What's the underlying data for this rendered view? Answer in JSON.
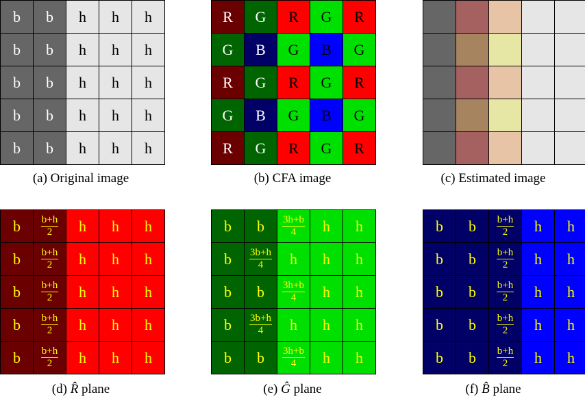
{
  "colors": {
    "orig_b": "#666666",
    "orig_h": "#e6e6e6",
    "R": "#ff0000",
    "R_dark": "#6b0000",
    "G": "#00e000",
    "G_dark": "#006400",
    "B": "#0000ff",
    "B_dark": "#000066",
    "est_dark": "#666666",
    "est_red": "#a56060",
    "est_peach": "#e6c4a5",
    "est_khaki": "#a5845f",
    "est_yellow": "#e6e6a5",
    "est_light": "#e6e6e6",
    "yellow_text": "#ffff00"
  },
  "panels": [
    {
      "id": "a",
      "caption": "(a) Original image",
      "rows": [
        [
          {
            "t": "b",
            "bg": "orig_b",
            "fg": "#ffffff"
          },
          {
            "t": "b",
            "bg": "orig_b",
            "fg": "#ffffff"
          },
          {
            "t": "h",
            "bg": "orig_h",
            "fg": "#000000"
          },
          {
            "t": "h",
            "bg": "orig_h",
            "fg": "#000000"
          },
          {
            "t": "h",
            "bg": "orig_h",
            "fg": "#000000"
          }
        ],
        [
          {
            "t": "b",
            "bg": "orig_b",
            "fg": "#ffffff"
          },
          {
            "t": "b",
            "bg": "orig_b",
            "fg": "#ffffff"
          },
          {
            "t": "h",
            "bg": "orig_h",
            "fg": "#000000"
          },
          {
            "t": "h",
            "bg": "orig_h",
            "fg": "#000000"
          },
          {
            "t": "h",
            "bg": "orig_h",
            "fg": "#000000"
          }
        ],
        [
          {
            "t": "b",
            "bg": "orig_b",
            "fg": "#ffffff"
          },
          {
            "t": "b",
            "bg": "orig_b",
            "fg": "#ffffff"
          },
          {
            "t": "h",
            "bg": "orig_h",
            "fg": "#000000"
          },
          {
            "t": "h",
            "bg": "orig_h",
            "fg": "#000000"
          },
          {
            "t": "h",
            "bg": "orig_h",
            "fg": "#000000"
          }
        ],
        [
          {
            "t": "b",
            "bg": "orig_b",
            "fg": "#ffffff"
          },
          {
            "t": "b",
            "bg": "orig_b",
            "fg": "#ffffff"
          },
          {
            "t": "h",
            "bg": "orig_h",
            "fg": "#000000"
          },
          {
            "t": "h",
            "bg": "orig_h",
            "fg": "#000000"
          },
          {
            "t": "h",
            "bg": "orig_h",
            "fg": "#000000"
          }
        ],
        [
          {
            "t": "b",
            "bg": "orig_b",
            "fg": "#ffffff"
          },
          {
            "t": "b",
            "bg": "orig_b",
            "fg": "#ffffff"
          },
          {
            "t": "h",
            "bg": "orig_h",
            "fg": "#000000"
          },
          {
            "t": "h",
            "bg": "orig_h",
            "fg": "#000000"
          },
          {
            "t": "h",
            "bg": "orig_h",
            "fg": "#000000"
          }
        ]
      ]
    },
    {
      "id": "b",
      "caption": "(b) CFA image",
      "rows": [
        [
          {
            "t": "R",
            "bg": "R_dark",
            "fg": "#ffffff"
          },
          {
            "t": "G",
            "bg": "G_dark",
            "fg": "#ffffff"
          },
          {
            "t": "R",
            "bg": "R",
            "fg": "#000000"
          },
          {
            "t": "G",
            "bg": "G",
            "fg": "#000000"
          },
          {
            "t": "R",
            "bg": "R",
            "fg": "#000000"
          }
        ],
        [
          {
            "t": "G",
            "bg": "G_dark",
            "fg": "#ffffff"
          },
          {
            "t": "B",
            "bg": "B_dark",
            "fg": "#ffffff"
          },
          {
            "t": "G",
            "bg": "G",
            "fg": "#000000"
          },
          {
            "t": "B",
            "bg": "B",
            "fg": "#000000"
          },
          {
            "t": "G",
            "bg": "G",
            "fg": "#000000"
          }
        ],
        [
          {
            "t": "R",
            "bg": "R_dark",
            "fg": "#ffffff"
          },
          {
            "t": "G",
            "bg": "G_dark",
            "fg": "#ffffff"
          },
          {
            "t": "R",
            "bg": "R",
            "fg": "#000000"
          },
          {
            "t": "G",
            "bg": "G",
            "fg": "#000000"
          },
          {
            "t": "R",
            "bg": "R",
            "fg": "#000000"
          }
        ],
        [
          {
            "t": "G",
            "bg": "G_dark",
            "fg": "#ffffff"
          },
          {
            "t": "B",
            "bg": "B_dark",
            "fg": "#ffffff"
          },
          {
            "t": "G",
            "bg": "G",
            "fg": "#000000"
          },
          {
            "t": "B",
            "bg": "B",
            "fg": "#000000"
          },
          {
            "t": "G",
            "bg": "G",
            "fg": "#000000"
          }
        ],
        [
          {
            "t": "R",
            "bg": "R_dark",
            "fg": "#ffffff"
          },
          {
            "t": "G",
            "bg": "G_dark",
            "fg": "#ffffff"
          },
          {
            "t": "R",
            "bg": "R",
            "fg": "#000000"
          },
          {
            "t": "G",
            "bg": "G",
            "fg": "#000000"
          },
          {
            "t": "R",
            "bg": "R",
            "fg": "#000000"
          }
        ]
      ]
    },
    {
      "id": "c",
      "caption": "(c) Estimated image",
      "rows": [
        [
          {
            "t": "",
            "bg": "est_dark"
          },
          {
            "t": "",
            "bg": "est_red"
          },
          {
            "t": "",
            "bg": "est_peach"
          },
          {
            "t": "",
            "bg": "est_light"
          },
          {
            "t": "",
            "bg": "est_light"
          }
        ],
        [
          {
            "t": "",
            "bg": "est_dark"
          },
          {
            "t": "",
            "bg": "est_khaki"
          },
          {
            "t": "",
            "bg": "est_yellow"
          },
          {
            "t": "",
            "bg": "est_light"
          },
          {
            "t": "",
            "bg": "est_light"
          }
        ],
        [
          {
            "t": "",
            "bg": "est_dark"
          },
          {
            "t": "",
            "bg": "est_red"
          },
          {
            "t": "",
            "bg": "est_peach"
          },
          {
            "t": "",
            "bg": "est_light"
          },
          {
            "t": "",
            "bg": "est_light"
          }
        ],
        [
          {
            "t": "",
            "bg": "est_dark"
          },
          {
            "t": "",
            "bg": "est_khaki"
          },
          {
            "t": "",
            "bg": "est_yellow"
          },
          {
            "t": "",
            "bg": "est_light"
          },
          {
            "t": "",
            "bg": "est_light"
          }
        ],
        [
          {
            "t": "",
            "bg": "est_dark"
          },
          {
            "t": "",
            "bg": "est_red"
          },
          {
            "t": "",
            "bg": "est_peach"
          },
          {
            "t": "",
            "bg": "est_light"
          },
          {
            "t": "",
            "bg": "est_light"
          }
        ]
      ]
    },
    {
      "id": "d",
      "caption_prefix": "(d) ",
      "caption_hat": "R̂",
      "caption_suffix": " plane",
      "rows": [
        [
          {
            "t": "b",
            "bg": "R_dark",
            "fg": "yellow_text"
          },
          {
            "num": "b+h",
            "den": "2",
            "bg": "R_dark",
            "fg": "yellow_text"
          },
          {
            "t": "h",
            "bg": "R",
            "fg": "yellow_text"
          },
          {
            "t": "h",
            "bg": "R",
            "fg": "yellow_text"
          },
          {
            "t": "h",
            "bg": "R",
            "fg": "yellow_text"
          }
        ],
        [
          {
            "t": "b",
            "bg": "R_dark",
            "fg": "yellow_text"
          },
          {
            "num": "b+h",
            "den": "2",
            "bg": "R_dark",
            "fg": "yellow_text"
          },
          {
            "t": "h",
            "bg": "R",
            "fg": "yellow_text"
          },
          {
            "t": "h",
            "bg": "R",
            "fg": "yellow_text"
          },
          {
            "t": "h",
            "bg": "R",
            "fg": "yellow_text"
          }
        ],
        [
          {
            "t": "b",
            "bg": "R_dark",
            "fg": "yellow_text"
          },
          {
            "num": "b+h",
            "den": "2",
            "bg": "R_dark",
            "fg": "yellow_text"
          },
          {
            "t": "h",
            "bg": "R",
            "fg": "yellow_text"
          },
          {
            "t": "h",
            "bg": "R",
            "fg": "yellow_text"
          },
          {
            "t": "h",
            "bg": "R",
            "fg": "yellow_text"
          }
        ],
        [
          {
            "t": "b",
            "bg": "R_dark",
            "fg": "yellow_text"
          },
          {
            "num": "b+h",
            "den": "2",
            "bg": "R_dark",
            "fg": "yellow_text"
          },
          {
            "t": "h",
            "bg": "R",
            "fg": "yellow_text"
          },
          {
            "t": "h",
            "bg": "R",
            "fg": "yellow_text"
          },
          {
            "t": "h",
            "bg": "R",
            "fg": "yellow_text"
          }
        ],
        [
          {
            "t": "b",
            "bg": "R_dark",
            "fg": "yellow_text"
          },
          {
            "num": "b+h",
            "den": "2",
            "bg": "R_dark",
            "fg": "yellow_text"
          },
          {
            "t": "h",
            "bg": "R",
            "fg": "yellow_text"
          },
          {
            "t": "h",
            "bg": "R",
            "fg": "yellow_text"
          },
          {
            "t": "h",
            "bg": "R",
            "fg": "yellow_text"
          }
        ]
      ]
    },
    {
      "id": "e",
      "caption_prefix": "(e) ",
      "caption_hat": "Ĝ",
      "caption_suffix": " plane",
      "rows": [
        [
          {
            "t": "b",
            "bg": "G_dark",
            "fg": "yellow_text"
          },
          {
            "t": "b",
            "bg": "G_dark",
            "fg": "yellow_text"
          },
          {
            "num": "3h+b",
            "den": "4",
            "bg": "G",
            "fg": "yellow_text"
          },
          {
            "t": "h",
            "bg": "G",
            "fg": "yellow_text"
          },
          {
            "t": "h",
            "bg": "G",
            "fg": "yellow_text"
          }
        ],
        [
          {
            "t": "b",
            "bg": "G_dark",
            "fg": "yellow_text"
          },
          {
            "num": "3b+h",
            "den": "4",
            "bg": "G_dark",
            "fg": "yellow_text"
          },
          {
            "t": "h",
            "bg": "G",
            "fg": "yellow_text"
          },
          {
            "t": "h",
            "bg": "G",
            "fg": "yellow_text"
          },
          {
            "t": "h",
            "bg": "G",
            "fg": "yellow_text"
          }
        ],
        [
          {
            "t": "b",
            "bg": "G_dark",
            "fg": "yellow_text"
          },
          {
            "t": "b",
            "bg": "G_dark",
            "fg": "yellow_text"
          },
          {
            "num": "3h+b",
            "den": "4",
            "bg": "G",
            "fg": "yellow_text"
          },
          {
            "t": "h",
            "bg": "G",
            "fg": "yellow_text"
          },
          {
            "t": "h",
            "bg": "G",
            "fg": "yellow_text"
          }
        ],
        [
          {
            "t": "b",
            "bg": "G_dark",
            "fg": "yellow_text"
          },
          {
            "num": "3b+h",
            "den": "4",
            "bg": "G_dark",
            "fg": "yellow_text"
          },
          {
            "t": "h",
            "bg": "G",
            "fg": "yellow_text"
          },
          {
            "t": "h",
            "bg": "G",
            "fg": "yellow_text"
          },
          {
            "t": "h",
            "bg": "G",
            "fg": "yellow_text"
          }
        ],
        [
          {
            "t": "b",
            "bg": "G_dark",
            "fg": "yellow_text"
          },
          {
            "t": "b",
            "bg": "G_dark",
            "fg": "yellow_text"
          },
          {
            "num": "3h+b",
            "den": "4",
            "bg": "G",
            "fg": "yellow_text"
          },
          {
            "t": "h",
            "bg": "G",
            "fg": "yellow_text"
          },
          {
            "t": "h",
            "bg": "G",
            "fg": "yellow_text"
          }
        ]
      ]
    },
    {
      "id": "f",
      "caption_prefix": "(f) ",
      "caption_hat": "B̂",
      "caption_suffix": " plane",
      "rows": [
        [
          {
            "t": "b",
            "bg": "B_dark",
            "fg": "yellow_text"
          },
          {
            "t": "b",
            "bg": "B_dark",
            "fg": "yellow_text"
          },
          {
            "num": "b+h",
            "den": "2",
            "bg": "B_dark",
            "fg": "yellow_text"
          },
          {
            "t": "h",
            "bg": "B",
            "fg": "yellow_text"
          },
          {
            "t": "h",
            "bg": "B",
            "fg": "yellow_text"
          }
        ],
        [
          {
            "t": "b",
            "bg": "B_dark",
            "fg": "yellow_text"
          },
          {
            "t": "b",
            "bg": "B_dark",
            "fg": "yellow_text"
          },
          {
            "num": "b+h",
            "den": "2",
            "bg": "B_dark",
            "fg": "yellow_text"
          },
          {
            "t": "h",
            "bg": "B",
            "fg": "yellow_text"
          },
          {
            "t": "h",
            "bg": "B",
            "fg": "yellow_text"
          }
        ],
        [
          {
            "t": "b",
            "bg": "B_dark",
            "fg": "yellow_text"
          },
          {
            "t": "b",
            "bg": "B_dark",
            "fg": "yellow_text"
          },
          {
            "num": "b+h",
            "den": "2",
            "bg": "B_dark",
            "fg": "yellow_text"
          },
          {
            "t": "h",
            "bg": "B",
            "fg": "yellow_text"
          },
          {
            "t": "h",
            "bg": "B",
            "fg": "yellow_text"
          }
        ],
        [
          {
            "t": "b",
            "bg": "B_dark",
            "fg": "yellow_text"
          },
          {
            "t": "b",
            "bg": "B_dark",
            "fg": "yellow_text"
          },
          {
            "num": "b+h",
            "den": "2",
            "bg": "B_dark",
            "fg": "yellow_text"
          },
          {
            "t": "h",
            "bg": "B",
            "fg": "yellow_text"
          },
          {
            "t": "h",
            "bg": "B",
            "fg": "yellow_text"
          }
        ],
        [
          {
            "t": "b",
            "bg": "B_dark",
            "fg": "yellow_text"
          },
          {
            "t": "b",
            "bg": "B_dark",
            "fg": "yellow_text"
          },
          {
            "num": "b+h",
            "den": "2",
            "bg": "B_dark",
            "fg": "yellow_text"
          },
          {
            "t": "h",
            "bg": "B",
            "fg": "yellow_text"
          },
          {
            "t": "h",
            "bg": "B",
            "fg": "yellow_text"
          }
        ]
      ]
    }
  ]
}
